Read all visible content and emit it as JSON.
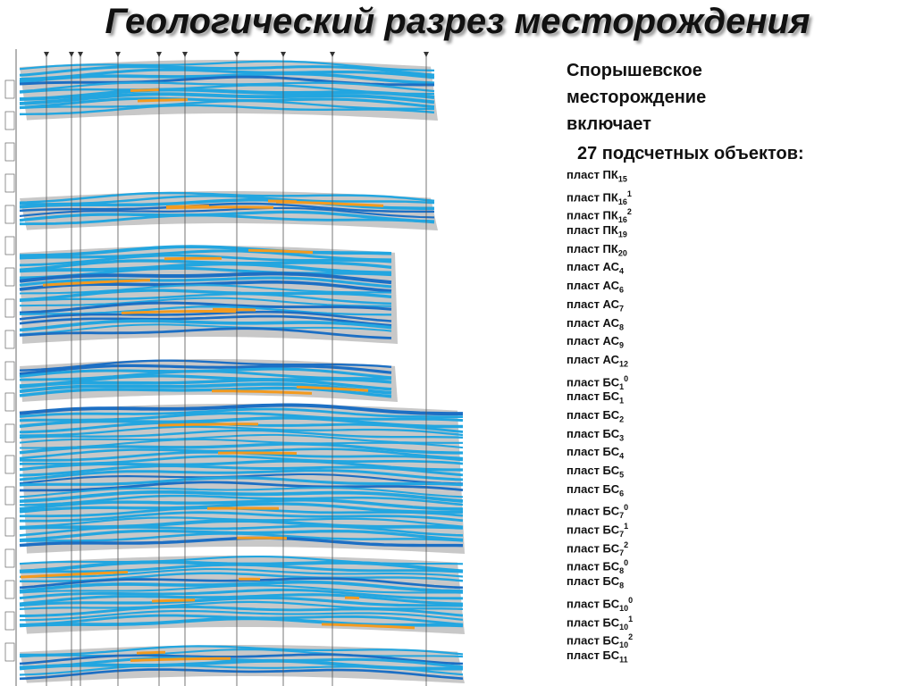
{
  "header": {
    "title": "Геологический разрез месторождения"
  },
  "description": {
    "lines": [
      "Спорышевское",
      "месторождение",
      "включает",
      "27 подсчетных объектов:"
    ]
  },
  "objects": [
    {
      "prefix": "пласт ПК",
      "sub": "15"
    },
    {
      "prefix": "пласт ПК",
      "sub": "16",
      "sup": "1"
    },
    {
      "prefix": "пласт ПК",
      "sub": "16",
      "sup": "2"
    },
    {
      "prefix": "пласт ПК",
      "sub": "19"
    },
    {
      "prefix": "пласт ПК",
      "sub": "20"
    },
    {
      "prefix": "пласт АС",
      "sub": "4"
    },
    {
      "prefix": "пласт АС",
      "sub": "6"
    },
    {
      "prefix": "пласт АС",
      "sub": "7"
    },
    {
      "prefix": "пласт АС",
      "sub": "8"
    },
    {
      "prefix": "пласт АС",
      "sub": "9"
    },
    {
      "prefix": "пласт АС",
      "sub": "12"
    },
    {
      "prefix": "пласт БС",
      "sub": "1",
      "sup": "0"
    },
    {
      "prefix": "пласт БС",
      "sub": "1"
    },
    {
      "prefix": "пласт БС",
      "sub": "2"
    },
    {
      "prefix": "пласт БС",
      "sub": "3"
    },
    {
      "prefix": "пласт БС",
      "sub": "4"
    },
    {
      "prefix": "пласт БС",
      "sub": "5"
    },
    {
      "prefix": "пласт БС",
      "sub": "6"
    },
    {
      "prefix": "пласт БС",
      "sub": "7",
      "sup": "0"
    },
    {
      "prefix": "пласт БС",
      "sub": "7",
      "sup": "1"
    },
    {
      "prefix": "пласт БС",
      "sub": "7",
      "sup": "2"
    },
    {
      "prefix": "пласт БС",
      "sub": "8",
      "sup": "0"
    },
    {
      "prefix": "пласт БС",
      "sub": "8"
    },
    {
      "prefix": "пласт БС",
      "sub": "10",
      "sup": "0"
    },
    {
      "prefix": "пласт БС",
      "sub": "10",
      "sup": "1"
    },
    {
      "prefix": "пласт БС",
      "sub": "10",
      "sup": "2"
    },
    {
      "prefix": "пласт БС",
      "sub": "11"
    }
  ]
}
